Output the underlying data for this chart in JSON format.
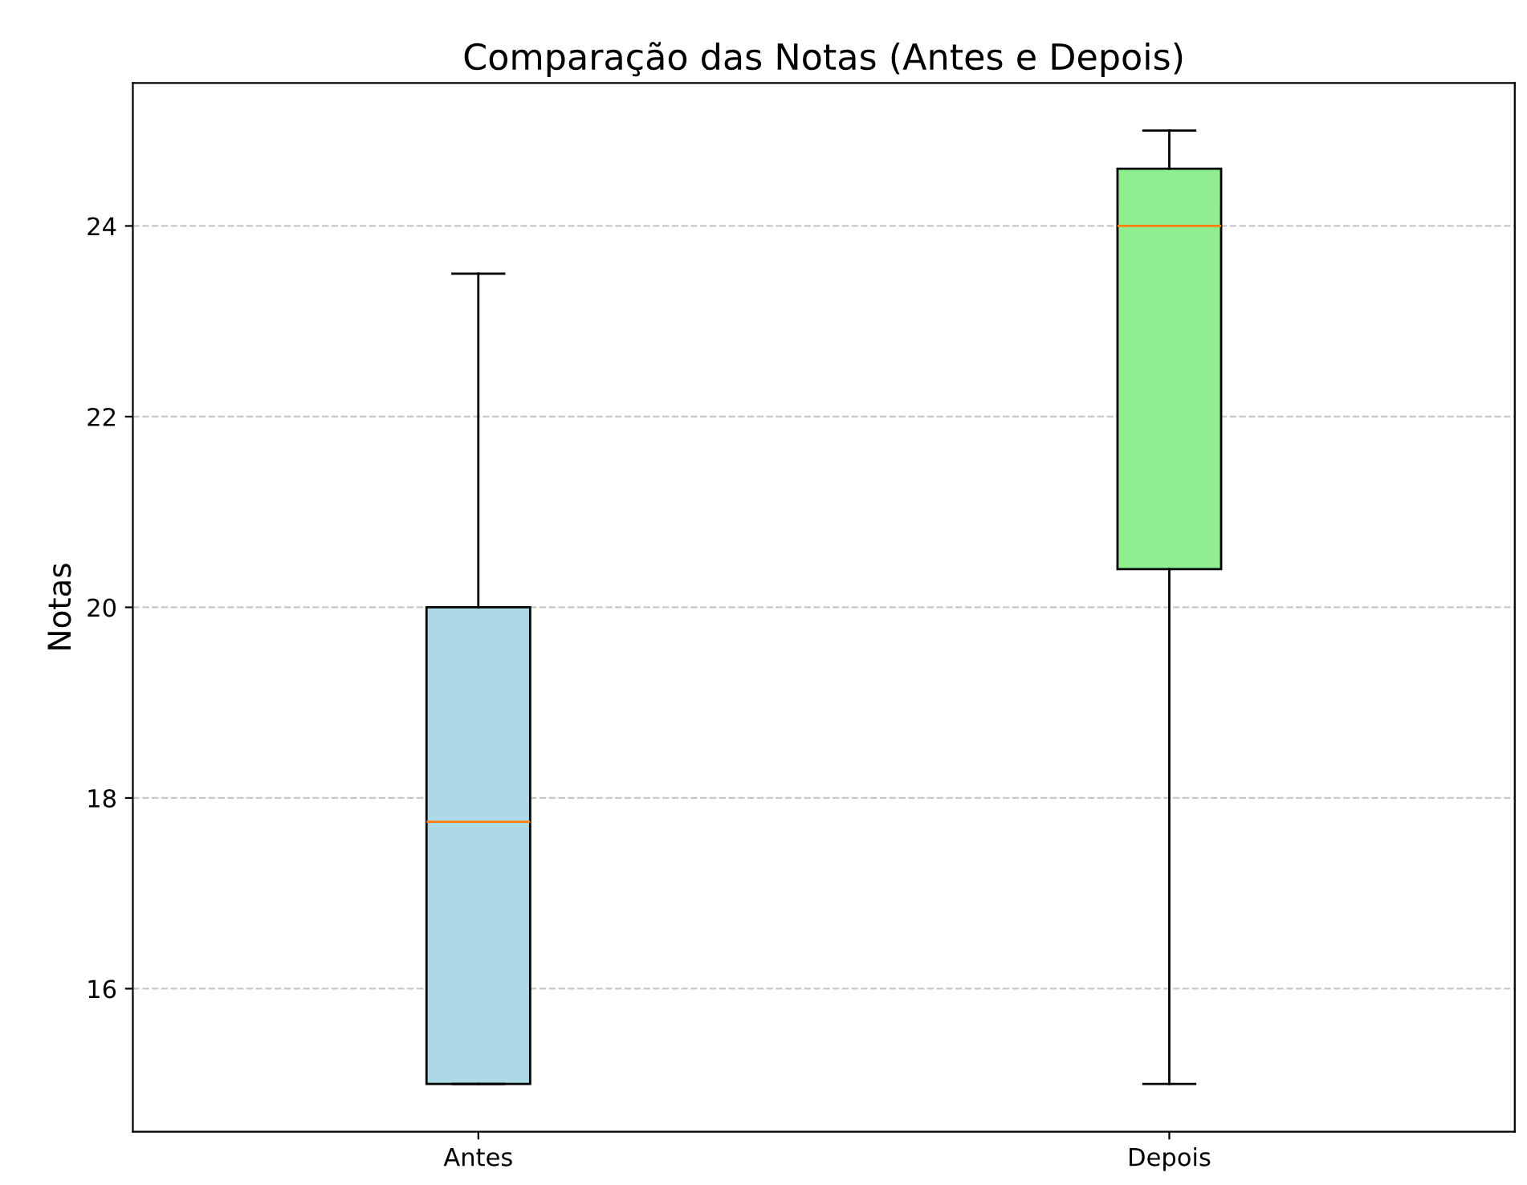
{
  "chart_data": {
    "type": "box",
    "title": "Comparação das Notas (Antes e Depois)",
    "ylabel": "Notas",
    "categories": [
      "Antes",
      "Depois"
    ],
    "boxes": [
      {
        "low": 15,
        "q1": 15,
        "median": 17.75,
        "q3": 20,
        "high": 23.5
      },
      {
        "low": 15,
        "q1": 20.4,
        "median": 24,
        "q3": 24.6,
        "high": 25
      }
    ],
    "colors": [
      "#add8e6",
      "#90ee90"
    ],
    "ylim": [
      14.5,
      25.5
    ],
    "yticks": [
      16,
      18,
      20,
      22,
      24
    ],
    "grid": "y"
  }
}
